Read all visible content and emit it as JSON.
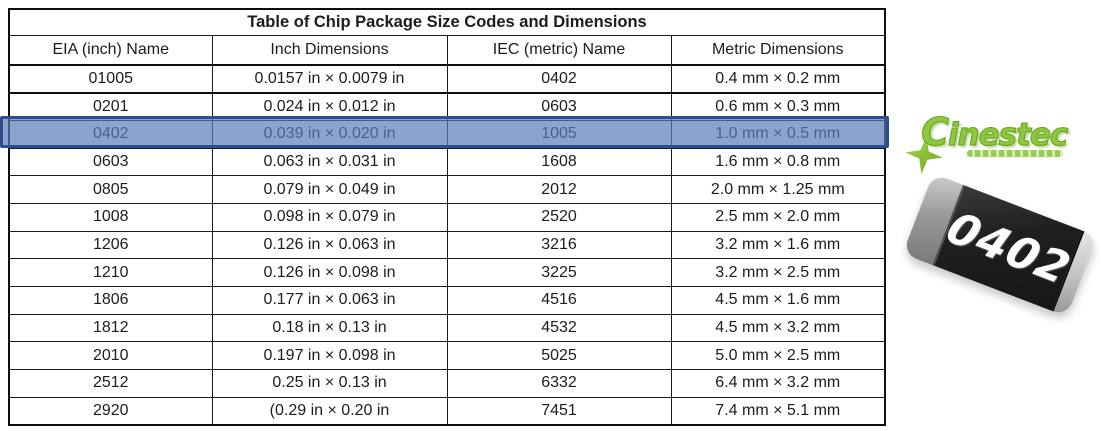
{
  "table": {
    "title": "Table of Chip Package Size Codes and Dimensions",
    "headers": [
      "EIA (inch) Name",
      "Inch Dimensions",
      "IEC (metric) Name",
      "Metric Dimensions"
    ],
    "rows": [
      [
        "01005",
        "0.0157 in × 0.0079 in",
        "0402",
        "0.4 mm × 0.2 mm"
      ],
      [
        "0201",
        "0.024 in × 0.012 in",
        "0603",
        "0.6 mm × 0.3 mm"
      ],
      [
        "0402",
        "0.039 in × 0.020 in",
        "1005",
        "1.0 mm × 0.5 mm"
      ],
      [
        "0603",
        "0.063 in × 0.031 in",
        "1608",
        "1.6 mm × 0.8 mm"
      ],
      [
        "0805",
        "0.079 in × 0.049 in",
        "2012",
        "2.0 mm × 1.25 mm"
      ],
      [
        "1008",
        "0.098 in × 0.079 in",
        "2520",
        "2.5 mm × 2.0 mm"
      ],
      [
        "1206",
        "0.126 in × 0.063 in",
        "3216",
        "3.2 mm × 1.6 mm"
      ],
      [
        "1210",
        "0.126 in × 0.098 in",
        "3225",
        "3.2 mm × 2.5 mm"
      ],
      [
        "1806",
        "0.177 in × 0.063 in",
        "4516",
        "4.5 mm × 1.6 mm"
      ],
      [
        "1812",
        "0.18 in × 0.13 in",
        "4532",
        "4.5 mm × 3.2 mm"
      ],
      [
        "2010",
        "0.197 in × 0.098 in",
        "5025",
        "5.0 mm × 2.5 mm"
      ],
      [
        "2512",
        "0.25 in × 0.13 in",
        "6332",
        "6.4 mm × 3.2 mm"
      ],
      [
        "2920",
        "(0.29 in × 0.20 in",
        "7451",
        "7.4 mm × 5.1 mm"
      ]
    ],
    "highlighted_row_index": 2,
    "highlight_fill": "#5b7cbc",
    "highlight_border": "#2e4c8e"
  },
  "logo": {
    "brand": "Cinestec",
    "color": "#8dc63f"
  },
  "chip_photo": {
    "label": "0402",
    "body_color": "#1f1f1f",
    "cap_color": "#c2c2c2"
  }
}
